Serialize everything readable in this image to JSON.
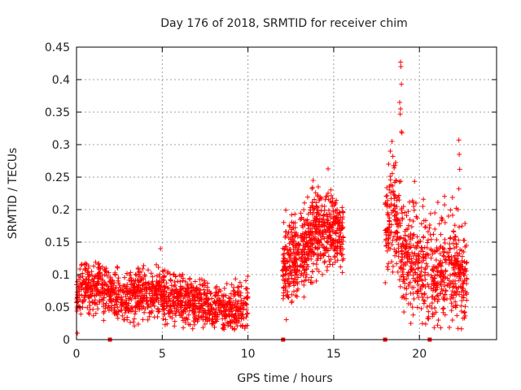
{
  "chart_data": {
    "type": "scatter",
    "title": "Day 176 of 2018, SRMTID for receiver chim",
    "xlabel": "GPS time / hours",
    "ylabel": "SRMTID / TECUs",
    "xlim": [
      0,
      24.5
    ],
    "ylim": [
      0,
      0.45
    ],
    "xticks": [
      0,
      5,
      10,
      15,
      20
    ],
    "xtick_labels": [
      "0",
      "5",
      "10",
      "15",
      "20"
    ],
    "yticks": [
      0,
      0.05,
      0.1,
      0.15,
      0.2,
      0.25,
      0.3,
      0.35,
      0.4,
      0.45
    ],
    "ytick_labels": [
      "0",
      "0.05",
      "0.1",
      "0.15",
      "0.2",
      "0.25",
      "0.3",
      "0.35",
      "0.4",
      "0.45"
    ],
    "grid": true,
    "marker": "+",
    "color": "#ff0000",
    "gap_markers_x": [
      1.95,
      12.05,
      18.0,
      20.6
    ],
    "segments": [
      {
        "x_start": 0.0,
        "x_end": 10.0,
        "mean": 0.065,
        "spread": 0.02,
        "points": 1300,
        "profile": [
          [
            0.0,
            0.075
          ],
          [
            1.2,
            0.085
          ],
          [
            2.5,
            0.065
          ],
          [
            5.0,
            0.07
          ],
          [
            7.5,
            0.05
          ],
          [
            10.0,
            0.05
          ]
        ]
      },
      {
        "x_start": 12.0,
        "x_end": 15.6,
        "mean": 0.14,
        "spread": 0.035,
        "points": 650,
        "profile": [
          [
            12.0,
            0.1
          ],
          [
            13.0,
            0.135
          ],
          [
            14.0,
            0.17
          ],
          [
            15.0,
            0.165
          ],
          [
            15.6,
            0.155
          ]
        ]
      },
      {
        "x_start": 18.0,
        "x_end": 22.8,
        "mean": 0.12,
        "spread": 0.045,
        "points": 700,
        "profile": [
          [
            18.0,
            0.17
          ],
          [
            18.5,
            0.2
          ],
          [
            19.0,
            0.13
          ],
          [
            20.0,
            0.12
          ],
          [
            21.0,
            0.1
          ],
          [
            22.0,
            0.11
          ],
          [
            22.8,
            0.1
          ]
        ]
      }
    ],
    "highlights": [
      {
        "x": 18.9,
        "y": 0.427
      },
      {
        "x": 18.92,
        "y": 0.42
      },
      {
        "x": 18.95,
        "y": 0.393
      },
      {
        "x": 18.85,
        "y": 0.365
      },
      {
        "x": 18.9,
        "y": 0.355
      },
      {
        "x": 18.88,
        "y": 0.347
      },
      {
        "x": 18.95,
        "y": 0.32
      },
      {
        "x": 18.98,
        "y": 0.318
      },
      {
        "x": 18.4,
        "y": 0.305
      },
      {
        "x": 18.3,
        "y": 0.29
      },
      {
        "x": 18.45,
        "y": 0.282
      },
      {
        "x": 18.2,
        "y": 0.27
      },
      {
        "x": 22.3,
        "y": 0.307
      },
      {
        "x": 22.32,
        "y": 0.285
      },
      {
        "x": 22.35,
        "y": 0.262
      },
      {
        "x": 22.3,
        "y": 0.232
      },
      {
        "x": 22.25,
        "y": 0.2
      },
      {
        "x": 13.8,
        "y": 0.245
      },
      {
        "x": 14.1,
        "y": 0.235
      },
      {
        "x": 4.9,
        "y": 0.14
      },
      {
        "x": 0.05,
        "y": 0.01
      },
      {
        "x": 19.5,
        "y": 0.025
      },
      {
        "x": 19.8,
        "y": 0.21
      },
      {
        "x": 20.2,
        "y": 0.205
      },
      {
        "x": 20.9,
        "y": 0.195
      },
      {
        "x": 21.5,
        "y": 0.18
      }
    ]
  }
}
